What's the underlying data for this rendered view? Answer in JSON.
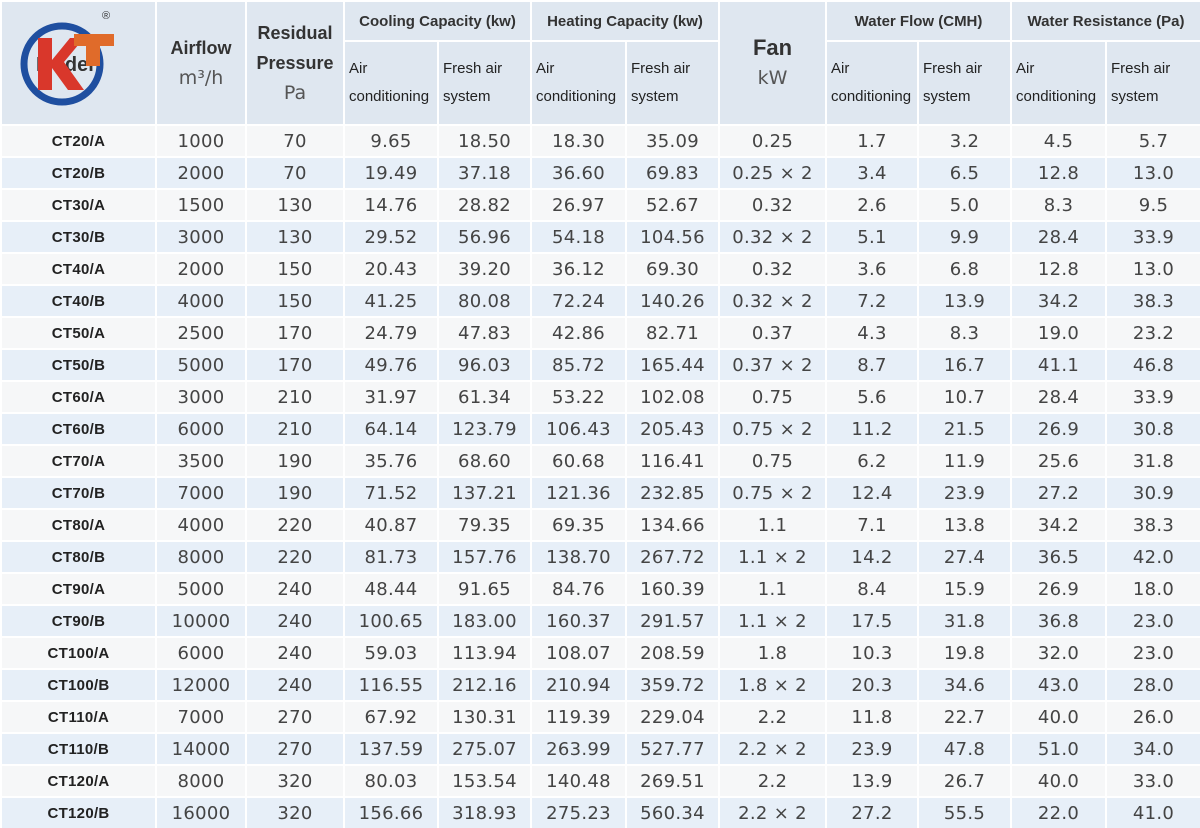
{
  "header": {
    "model": "Model",
    "registered": "®",
    "airflow": "Airflow",
    "airflow_unit": "m³/h",
    "pressure": "Residual Pressure",
    "pressure_unit": "Pa",
    "cooling": "Cooling Capacity (kw)",
    "heating": "Heating Capacity (kw)",
    "fan": "Fan",
    "fan_unit": "kW",
    "water_flow": "Water Flow (CMH)",
    "water_resistance": "Water Resistance (Pa)",
    "air_conditioning": "Air conditioning",
    "fresh_air": "Fresh air system"
  },
  "rows": [
    [
      "CT20/A",
      "1000",
      "70",
      "9.65",
      "18.50",
      "18.30",
      "35.09",
      "0.25",
      "1.7",
      "3.2",
      "4.5",
      "5.7"
    ],
    [
      "CT20/B",
      "2000",
      "70",
      "19.49",
      "37.18",
      "36.60",
      "69.83",
      "0.25 × 2",
      "3.4",
      "6.5",
      "12.8",
      "13.0"
    ],
    [
      "CT30/A",
      "1500",
      "130",
      "14.76",
      "28.82",
      "26.97",
      "52.67",
      "0.32",
      "2.6",
      "5.0",
      "8.3",
      "9.5"
    ],
    [
      "CT30/B",
      "3000",
      "130",
      "29.52",
      "56.96",
      "54.18",
      "104.56",
      "0.32 × 2",
      "5.1",
      "9.9",
      "28.4",
      "33.9"
    ],
    [
      "CT40/A",
      "2000",
      "150",
      "20.43",
      "39.20",
      "36.12",
      "69.30",
      "0.32",
      "3.6",
      "6.8",
      "12.8",
      "13.0"
    ],
    [
      "CT40/B",
      "4000",
      "150",
      "41.25",
      "80.08",
      "72.24",
      "140.26",
      "0.32 × 2",
      "7.2",
      "13.9",
      "34.2",
      "38.3"
    ],
    [
      "CT50/A",
      "2500",
      "170",
      "24.79",
      "47.83",
      "42.86",
      "82.71",
      "0.37",
      "4.3",
      "8.3",
      "19.0",
      "23.2"
    ],
    [
      "CT50/B",
      "5000",
      "170",
      "49.76",
      "96.03",
      "85.72",
      "165.44",
      "0.37 × 2",
      "8.7",
      "16.7",
      "41.1",
      "46.8"
    ],
    [
      "CT60/A",
      "3000",
      "210",
      "31.97",
      "61.34",
      "53.22",
      "102.08",
      "0.75",
      "5.6",
      "10.7",
      "28.4",
      "33.9"
    ],
    [
      "CT60/B",
      "6000",
      "210",
      "64.14",
      "123.79",
      "106.43",
      "205.43",
      "0.75 × 2",
      "11.2",
      "21.5",
      "26.9",
      "30.8"
    ],
    [
      "CT70/A",
      "3500",
      "190",
      "35.76",
      "68.60",
      "60.68",
      "116.41",
      "0.75",
      "6.2",
      "11.9",
      "25.6",
      "31.8"
    ],
    [
      "CT70/B",
      "7000",
      "190",
      "71.52",
      "137.21",
      "121.36",
      "232.85",
      "0.75 × 2",
      "12.4",
      "23.9",
      "27.2",
      "30.9"
    ],
    [
      "CT80/A",
      "4000",
      "220",
      "40.87",
      "79.35",
      "69.35",
      "134.66",
      "1.1",
      "7.1",
      "13.8",
      "34.2",
      "38.3"
    ],
    [
      "CT80/B",
      "8000",
      "220",
      "81.73",
      "157.76",
      "138.70",
      "267.72",
      "1.1 × 2",
      "14.2",
      "27.4",
      "36.5",
      "42.0"
    ],
    [
      "CT90/A",
      "5000",
      "240",
      "48.44",
      "91.65",
      "84.76",
      "160.39",
      "1.1",
      "8.4",
      "15.9",
      "26.9",
      "18.0"
    ],
    [
      "CT90/B",
      "10000",
      "240",
      "100.65",
      "183.00",
      "160.37",
      "291.57",
      "1.1 × 2",
      "17.5",
      "31.8",
      "36.8",
      "23.0"
    ],
    [
      "CT100/A",
      "6000",
      "240",
      "59.03",
      "113.94",
      "108.07",
      "208.59",
      "1.8",
      "10.3",
      "19.8",
      "32.0",
      "23.0"
    ],
    [
      "CT100/B",
      "12000",
      "240",
      "116.55",
      "212.16",
      "210.94",
      "359.72",
      "1.8 × 2",
      "20.3",
      "34.6",
      "43.0",
      "28.0"
    ],
    [
      "CT110/A",
      "7000",
      "270",
      "67.92",
      "130.31",
      "119.39",
      "229.04",
      "2.2",
      "11.8",
      "22.7",
      "40.0",
      "26.0"
    ],
    [
      "CT110/B",
      "14000",
      "270",
      "137.59",
      "275.07",
      "263.99",
      "527.77",
      "2.2 × 2",
      "23.9",
      "47.8",
      "51.0",
      "34.0"
    ],
    [
      "CT120/A",
      "8000",
      "320",
      "80.03",
      "153.54",
      "140.48",
      "269.51",
      "2.2",
      "13.9",
      "26.7",
      "40.0",
      "33.0"
    ],
    [
      "CT120/B",
      "16000",
      "320",
      "156.66",
      "318.93",
      "275.23",
      "560.34",
      "2.2 × 2",
      "27.2",
      "55.5",
      "22.0",
      "41.0"
    ]
  ]
}
